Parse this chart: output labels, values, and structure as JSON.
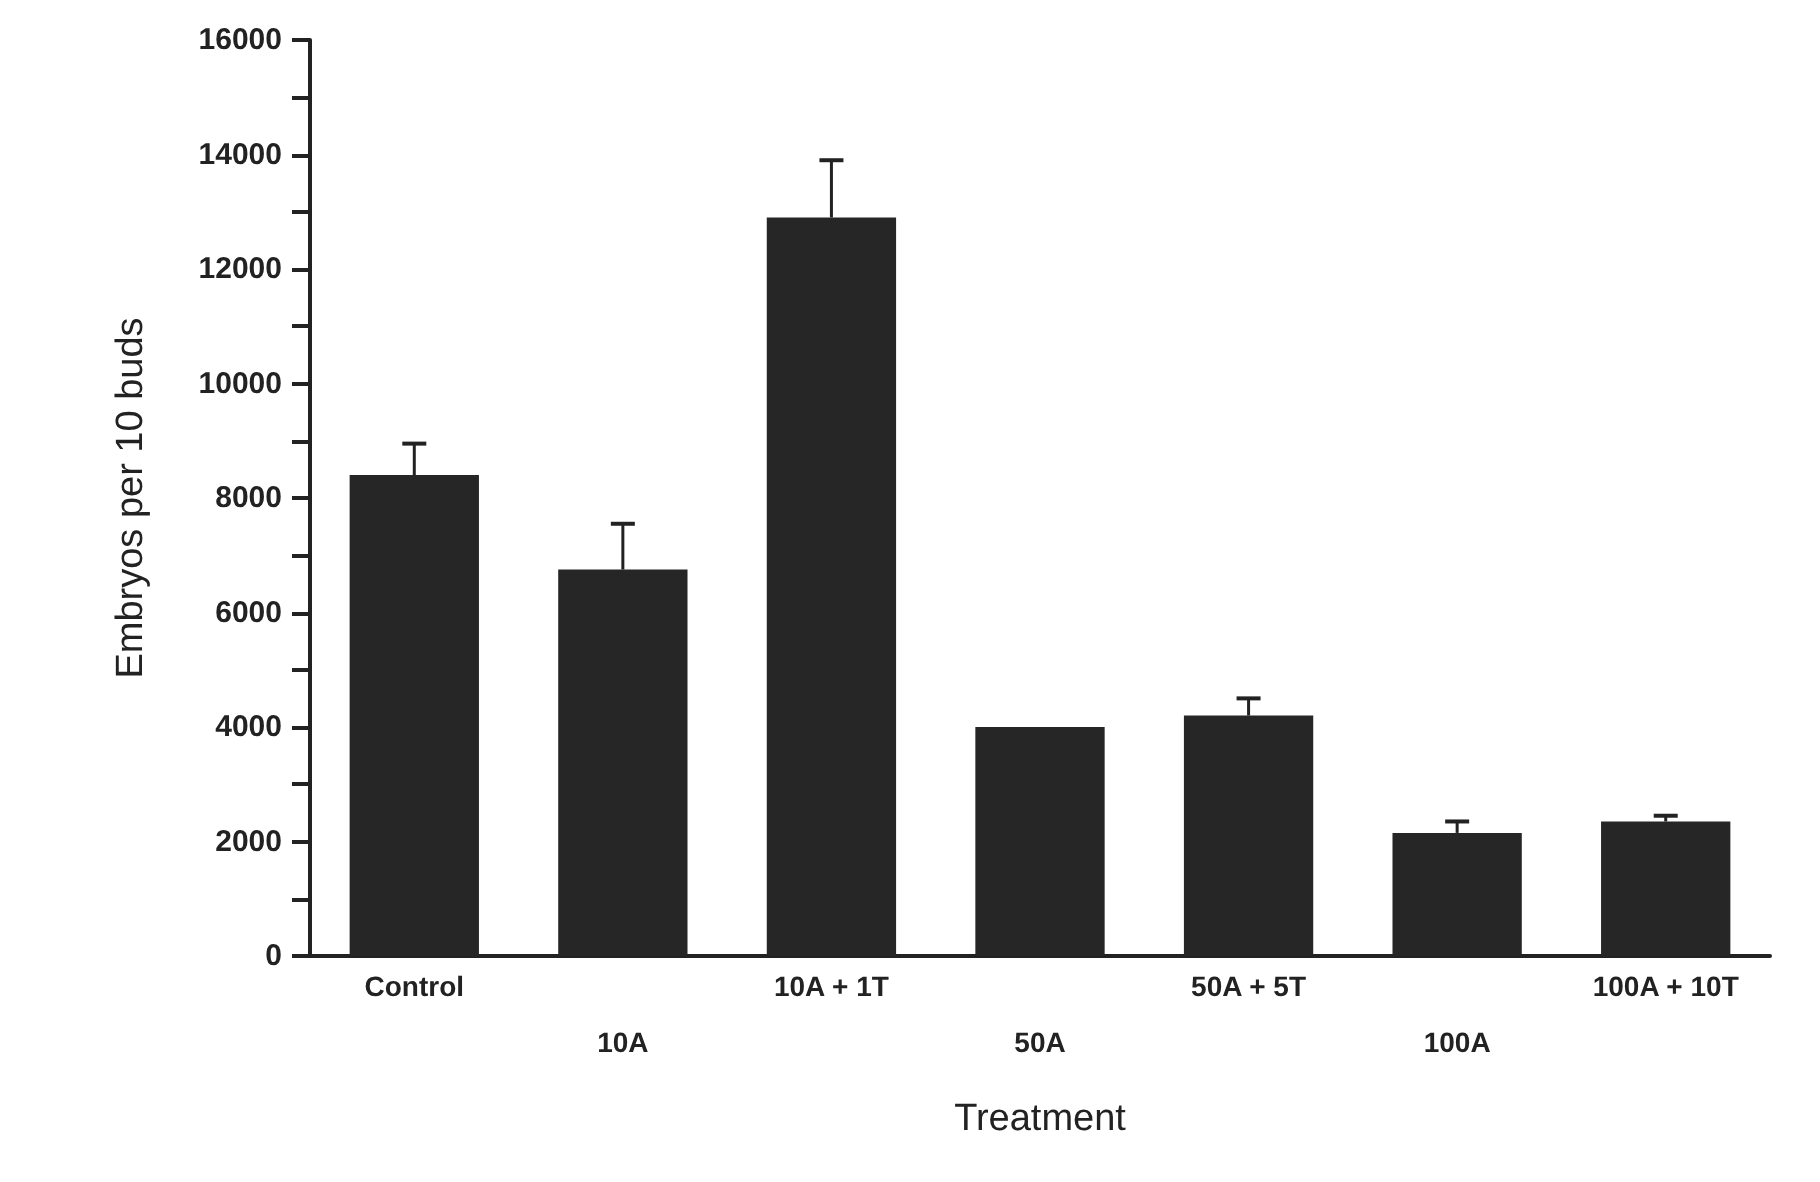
{
  "chart_data": {
    "type": "bar",
    "xlabel": "Treatment",
    "ylabel": "Embryos per 10 buds",
    "categories": [
      "Control",
      "10A",
      "10A + 1T",
      "50A",
      "50A + 5T",
      "100A",
      "100A + 10T"
    ],
    "values": [
      8400,
      6750,
      12900,
      4000,
      4200,
      2150,
      2350
    ],
    "errors": [
      [
        8400,
        8950
      ],
      [
        6750,
        7550
      ],
      [
        12900,
        13900
      ],
      null,
      [
        4200,
        4500
      ],
      [
        2150,
        2350
      ],
      [
        2350,
        2450
      ]
    ],
    "color": "#262626",
    "ylim": [
      0,
      16000
    ],
    "yticks": [
      0,
      {
        "value": 1000,
        "label": null
      },
      2000,
      {
        "value": 3000,
        "label": null
      },
      4000,
      {
        "value": 5000,
        "label": null
      },
      6000,
      {
        "value": 7000,
        "label": null
      },
      8000,
      {
        "value": 9000,
        "label": null
      },
      10000,
      {
        "value": 11000,
        "label": null
      },
      12000,
      {
        "value": 13000,
        "label": null
      },
      14000,
      {
        "value": 15000,
        "label": null
      },
      16000
    ],
    "grid": false
  }
}
